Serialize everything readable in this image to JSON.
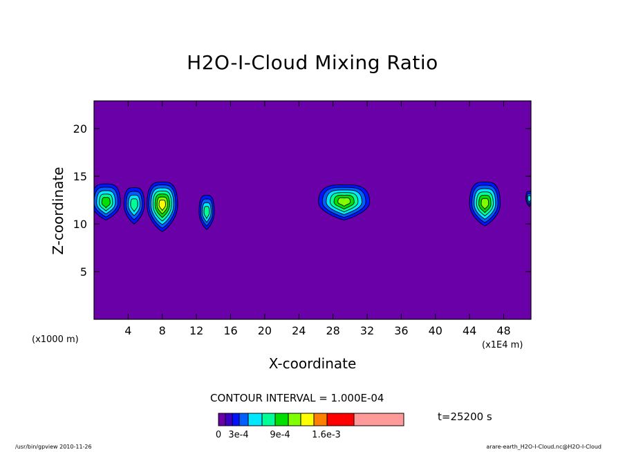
{
  "chart_data": {
    "type": "heatmap",
    "subtype": "filled-contour",
    "title": "H2O-I-Cloud Mixing Ratio",
    "xlabel": "X-coordinate",
    "ylabel": "Z-coordinate",
    "x_unit_left": "(x1000 m)",
    "x_unit_right": "(x1E4 m)",
    "xlim": [
      0,
      51.2
    ],
    "ylim": [
      0,
      22.9
    ],
    "x_ticks": [
      4,
      8,
      12,
      16,
      20,
      24,
      28,
      32,
      36,
      40,
      44,
      48
    ],
    "y_ticks": [
      5,
      10,
      15,
      20
    ],
    "contour_interval": "CONTOUR INTERVAL = 1.000E-04",
    "time_label": "t=25200 s",
    "levels": [
      0,
      0.0001,
      0.0002,
      0.0003,
      0.0004,
      0.0005,
      0.0006,
      0.0007,
      0.0008,
      0.0009,
      0.001,
      0.0012,
      0.0014,
      0.0016,
      0.002
    ],
    "colorbar_labels": [
      "0",
      "3e-4",
      "9e-4",
      "1.6e-3"
    ],
    "colors": [
      "#6a00a8",
      "#3c00c8",
      "#0014ff",
      "#0060ff",
      "#00e8ff",
      "#00ff96",
      "#00e000",
      "#80ff00",
      "#ffff00",
      "#ff8000",
      "#ff0000",
      "#ff9a9a"
    ],
    "background_color": "#6a00a8",
    "cloud_cells": [
      {
        "x": 1.4,
        "z": 12.2,
        "width": 3.4,
        "top": 14.2,
        "bottom": 10.4,
        "peak_level": 5
      },
      {
        "x": 4.7,
        "z": 12.0,
        "width": 2.4,
        "top": 13.8,
        "bottom": 10.0,
        "peak_level": 4
      },
      {
        "x": 8.0,
        "z": 12.0,
        "width": 3.6,
        "top": 14.4,
        "bottom": 9.2,
        "peak_level": 7
      },
      {
        "x": 13.2,
        "z": 11.2,
        "width": 1.8,
        "top": 13.0,
        "bottom": 9.4,
        "peak_level": 4
      },
      {
        "x": 29.3,
        "z": 12.3,
        "width": 6.0,
        "top": 14.1,
        "bottom": 10.4,
        "peak_level": 6
      },
      {
        "x": 45.8,
        "z": 12.1,
        "width": 3.6,
        "top": 14.4,
        "bottom": 9.8,
        "peak_level": 6
      },
      {
        "x": 51.0,
        "z": 12.6,
        "width": 0.8,
        "top": 13.4,
        "bottom": 11.8,
        "peak_level": 3
      }
    ],
    "footer_left": "/usr/bin/gpview  2010-11-26",
    "footer_right": "arare-earth_H2O-I-Cloud.nc@H2O-I-Cloud"
  }
}
